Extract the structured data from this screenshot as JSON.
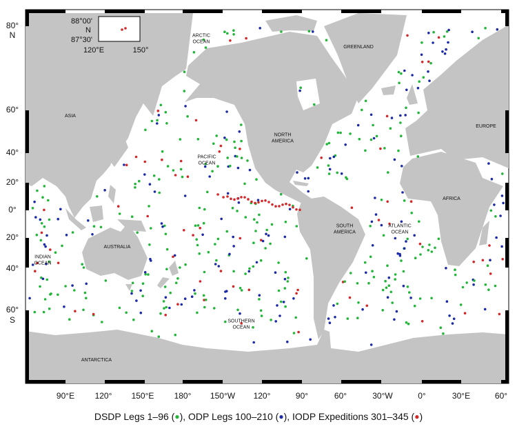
{
  "inset": {
    "lat_top": "88°00'",
    "lat_hemisphere": "N",
    "lat_bottom": "87°30'",
    "lon_left": "120°E",
    "lon_right": "150°"
  },
  "lat_labels": [
    "80°",
    "N",
    "60°",
    "40°",
    "20°",
    "0°",
    "20°",
    "40°",
    "60°",
    "S"
  ],
  "lon_labels": [
    "90°E",
    "120°",
    "150°E",
    "180°",
    "150°W",
    "120°",
    "90°",
    "60°",
    "30°W",
    "0°",
    "30°E",
    "60°"
  ],
  "regions": [
    {
      "lines": [
        "ARCTIC",
        "OCEAN"
      ]
    },
    {
      "lines": [
        "GREENLAND"
      ]
    },
    {
      "lines": [
        "ASIA"
      ]
    },
    {
      "lines": [
        "NORTH",
        "AMERICA"
      ]
    },
    {
      "lines": [
        "PACIFIC",
        "OCEAN"
      ]
    },
    {
      "lines": [
        "EUROPE"
      ]
    },
    {
      "lines": [
        "AFRICA"
      ]
    },
    {
      "lines": [
        "SOUTH",
        "AMERICA"
      ]
    },
    {
      "lines": [
        "ATLANTIC",
        "OCEAN"
      ]
    },
    {
      "lines": [
        "AUSTRALIA"
      ]
    },
    {
      "lines": [
        "INDIAN",
        "OCEAN"
      ]
    },
    {
      "lines": [
        "SOUTHERN",
        "OCEAN"
      ]
    },
    {
      "lines": [
        "ANTARCTICA"
      ]
    }
  ],
  "legend": {
    "parts": [
      "DSDP Legs 1–96 (",
      "), ODP Legs 100–210 (",
      "), IODP Expeditions 301–345 (",
      ")"
    ],
    "colors": [
      "#22b53a",
      "#1c2aa6",
      "#d3282a"
    ]
  }
}
